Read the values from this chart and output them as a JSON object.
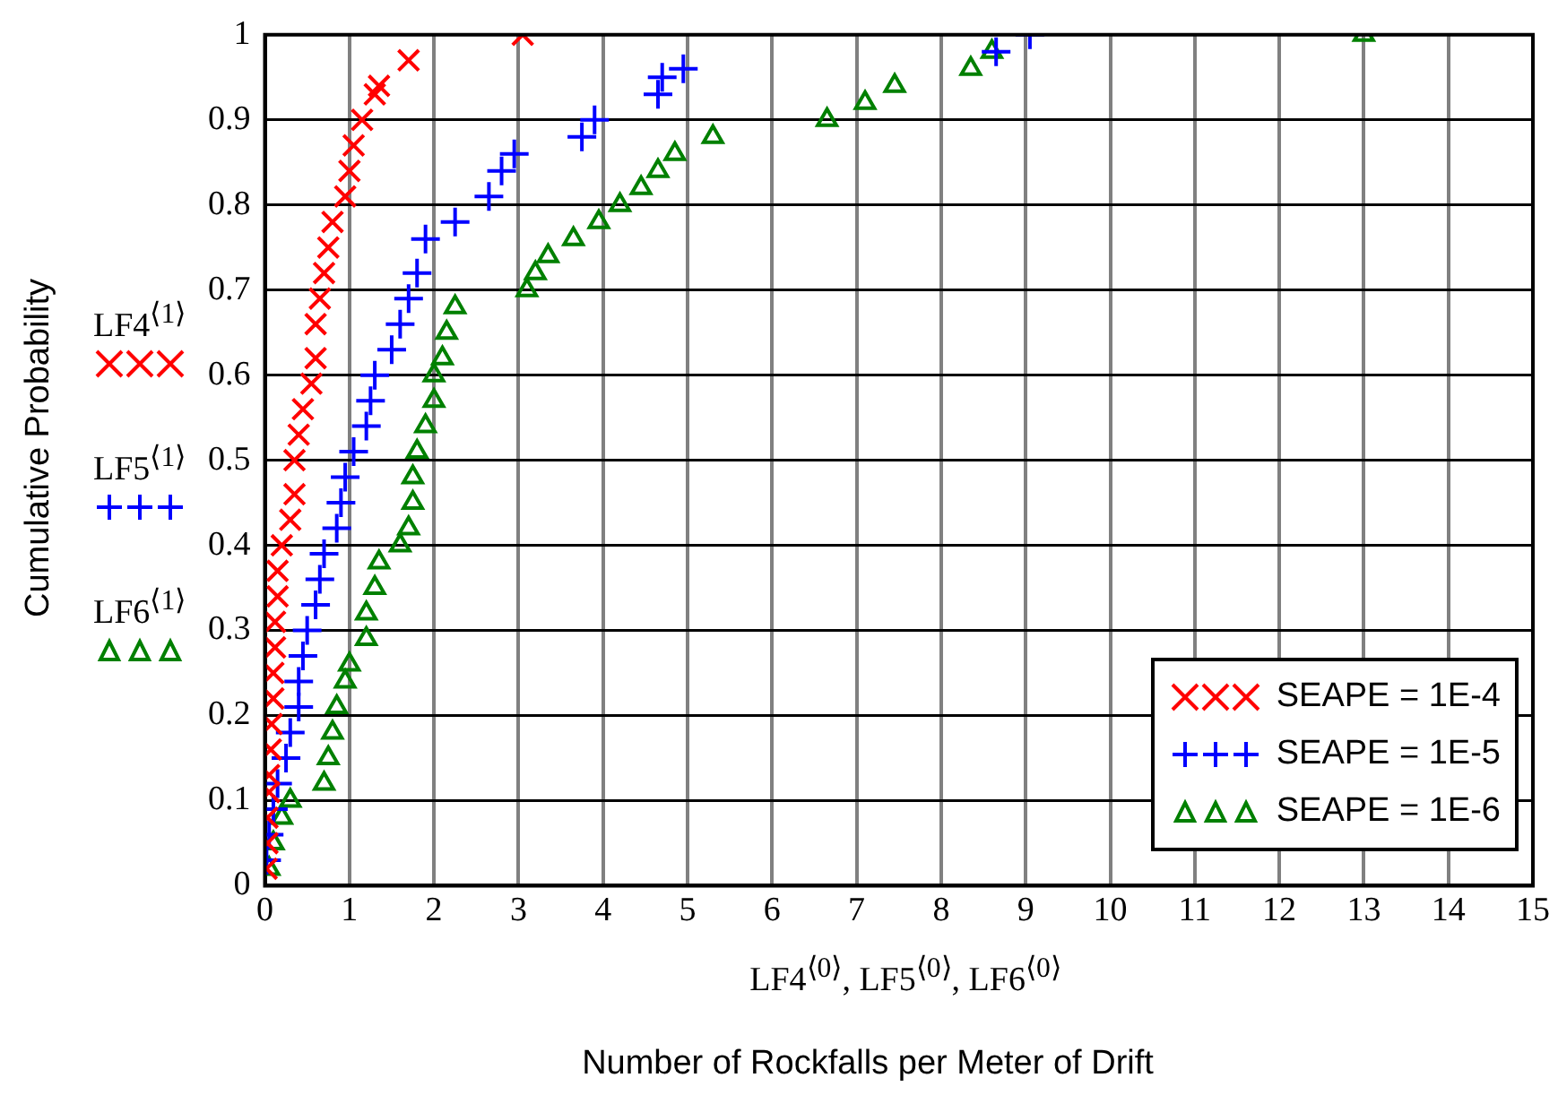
{
  "chart_data": {
    "type": "scatter",
    "xlabel": "Number of Rockfalls per Meter of Drift",
    "ylabel": "Cumulative Probability",
    "annotations": [
      "LF4$^{⟨1⟩}$",
      "LF5$^{⟨1⟩}$",
      "LF6$^{⟨1⟩}$",
      "LF4$^{⟨0⟩}$, LF5$^{⟨0⟩}$, LF6$^{⟨0⟩}$"
    ],
    "xlim": [
      0,
      15
    ],
    "xticks": [
      0,
      1,
      2,
      3,
      4,
      5,
      6,
      7,
      8,
      9,
      10,
      11,
      12,
      13,
      14,
      15
    ],
    "ylim": [
      0,
      1
    ],
    "yticks": [
      0,
      0.1,
      0.2,
      0.3,
      0.4,
      0.5,
      0.6,
      0.7,
      0.8,
      0.9,
      1
    ],
    "grid": true,
    "legend": "bottom right",
    "series": [
      {
        "name": "SEAPE = 1E-4",
        "color": "#ff0000",
        "marker": "cross",
        "x": [
          0.02,
          0.03,
          0.03,
          0.05,
          0.05,
          0.07,
          0.08,
          0.1,
          0.1,
          0.12,
          0.12,
          0.15,
          0.15,
          0.2,
          0.3,
          0.35,
          0.35,
          0.4,
          0.45,
          0.55,
          0.6,
          0.6,
          0.65,
          0.7,
          0.75,
          0.8,
          0.95,
          1.0,
          1.05,
          1.15,
          1.3,
          1.35,
          1.7,
          3.05
        ],
        "values": [
          0.02,
          0.05,
          0.08,
          0.11,
          0.13,
          0.16,
          0.19,
          0.22,
          0.25,
          0.28,
          0.31,
          0.34,
          0.37,
          0.4,
          0.43,
          0.46,
          0.5,
          0.53,
          0.56,
          0.59,
          0.62,
          0.66,
          0.69,
          0.72,
          0.75,
          0.78,
          0.81,
          0.84,
          0.87,
          0.9,
          0.93,
          0.94,
          0.97,
          1.0
        ]
      },
      {
        "name": "SEAPE = 1E-5",
        "color": "#0000ff",
        "marker": "plus",
        "x": [
          0.02,
          0.05,
          0.1,
          0.15,
          0.25,
          0.3,
          0.4,
          0.4,
          0.45,
          0.5,
          0.6,
          0.65,
          0.7,
          0.85,
          0.9,
          0.95,
          1.05,
          1.2,
          1.25,
          1.3,
          1.5,
          1.6,
          1.7,
          1.8,
          1.9,
          2.25,
          2.65,
          2.8,
          2.95,
          3.75,
          3.9,
          4.65,
          4.7,
          4.95,
          8.65,
          9.05
        ],
        "values": [
          0.03,
          0.06,
          0.09,
          0.12,
          0.15,
          0.18,
          0.21,
          0.24,
          0.27,
          0.3,
          0.33,
          0.36,
          0.39,
          0.42,
          0.45,
          0.48,
          0.51,
          0.54,
          0.57,
          0.6,
          0.63,
          0.66,
          0.69,
          0.72,
          0.76,
          0.78,
          0.81,
          0.84,
          0.86,
          0.88,
          0.9,
          0.93,
          0.95,
          0.96,
          0.98,
          1.0
        ]
      },
      {
        "name": "SEAPE = 1E-6",
        "color": "#008000",
        "marker": "triangle",
        "x": [
          0.05,
          0.1,
          0.2,
          0.3,
          0.7,
          0.75,
          0.8,
          0.85,
          0.95,
          1.0,
          1.2,
          1.2,
          1.3,
          1.35,
          1.6,
          1.7,
          1.75,
          1.75,
          1.8,
          1.9,
          2.0,
          2.0,
          2.1,
          2.15,
          2.25,
          3.1,
          3.2,
          3.35,
          3.65,
          3.95,
          4.2,
          4.45,
          4.65,
          4.85,
          5.3,
          6.65,
          7.1,
          7.45,
          8.35,
          8.6,
          13.0
        ],
        "values": [
          0.02,
          0.05,
          0.08,
          0.1,
          0.12,
          0.15,
          0.18,
          0.21,
          0.24,
          0.26,
          0.29,
          0.32,
          0.35,
          0.38,
          0.4,
          0.42,
          0.45,
          0.48,
          0.51,
          0.54,
          0.57,
          0.6,
          0.62,
          0.65,
          0.68,
          0.7,
          0.72,
          0.74,
          0.76,
          0.78,
          0.8,
          0.82,
          0.84,
          0.86,
          0.88,
          0.9,
          0.92,
          0.94,
          0.96,
          0.98,
          1.0
        ]
      }
    ]
  }
}
